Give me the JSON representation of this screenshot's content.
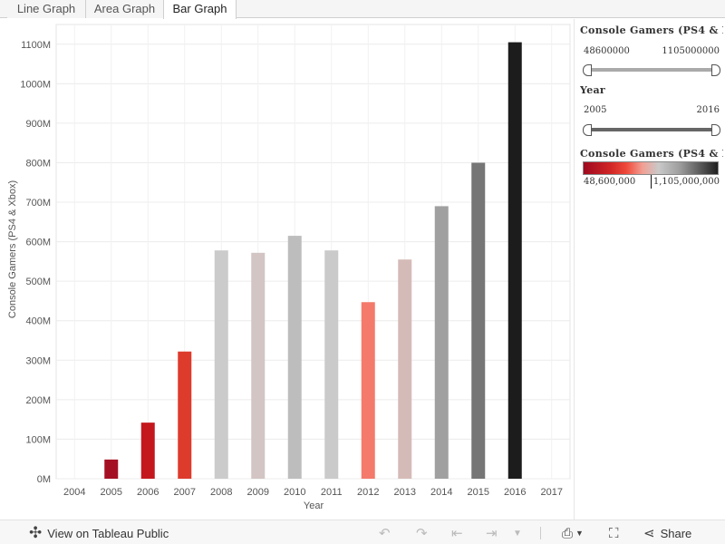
{
  "tabs": [
    {
      "label": "Line Graph",
      "active": false
    },
    {
      "label": "Area Graph",
      "active": false
    },
    {
      "label": "Bar Graph",
      "active": true
    }
  ],
  "filters": {
    "gamers": {
      "title": "Console Gamers (PS4 & X...",
      "min": "48600000",
      "max": "1105000000"
    },
    "year": {
      "title": "Year",
      "min": "2005",
      "max": "2016"
    },
    "legend": {
      "title": "Console Gamers (PS4 & X...",
      "min": "48,600,000",
      "max": "1,105,000,000",
      "marker_fraction": 0.5
    }
  },
  "toolbar": {
    "view_label": "View on Tableau Public",
    "share_label": "Share",
    "icons": [
      "tableau-icon",
      "undo-icon",
      "redo-icon",
      "revert-icon",
      "refresh-icon",
      "pause-dropdown-icon",
      "download-icon",
      "fullscreen-icon",
      "share-icon"
    ]
  },
  "chart_data": {
    "type": "bar",
    "title": "",
    "xlabel": "Year",
    "ylabel": "Console Gamers (PS4 & Xbox)",
    "ylim": [
      0,
      1150000000
    ],
    "yticks": [
      {
        "value": 0,
        "label": "0M"
      },
      {
        "value": 100000000,
        "label": "100M"
      },
      {
        "value": 200000000,
        "label": "200M"
      },
      {
        "value": 300000000,
        "label": "300M"
      },
      {
        "value": 400000000,
        "label": "400M"
      },
      {
        "value": 500000000,
        "label": "500M"
      },
      {
        "value": 600000000,
        "label": "600M"
      },
      {
        "value": 700000000,
        "label": "700M"
      },
      {
        "value": 800000000,
        "label": "800M"
      },
      {
        "value": 900000000,
        "label": "900M"
      },
      {
        "value": 1000000000,
        "label": "1000M"
      },
      {
        "value": 1100000000,
        "label": "1100M"
      }
    ],
    "xticks": [
      "2004",
      "2005",
      "2006",
      "2007",
      "2008",
      "2009",
      "2010",
      "2011",
      "2012",
      "2013",
      "2014",
      "2015",
      "2016",
      "2017"
    ],
    "grid": true,
    "categories": [
      "2005",
      "2006",
      "2007",
      "2008",
      "2009",
      "2010",
      "2011",
      "2012",
      "2013",
      "2014",
      "2015",
      "2016"
    ],
    "values": [
      48600000,
      142000000,
      322000000,
      578000000,
      572000000,
      615000000,
      578000000,
      447000000,
      555000000,
      690000000,
      800000000,
      1105000000
    ],
    "colors": [
      "#a50f24",
      "#c4171d",
      "#dd3b2c",
      "#cbcbcb",
      "#d2c5c3",
      "#bdbdbd",
      "#cacaca",
      "#f47a6c",
      "#d5bbb7",
      "#a0a0a0",
      "#767676",
      "#1c1c1c"
    ]
  }
}
